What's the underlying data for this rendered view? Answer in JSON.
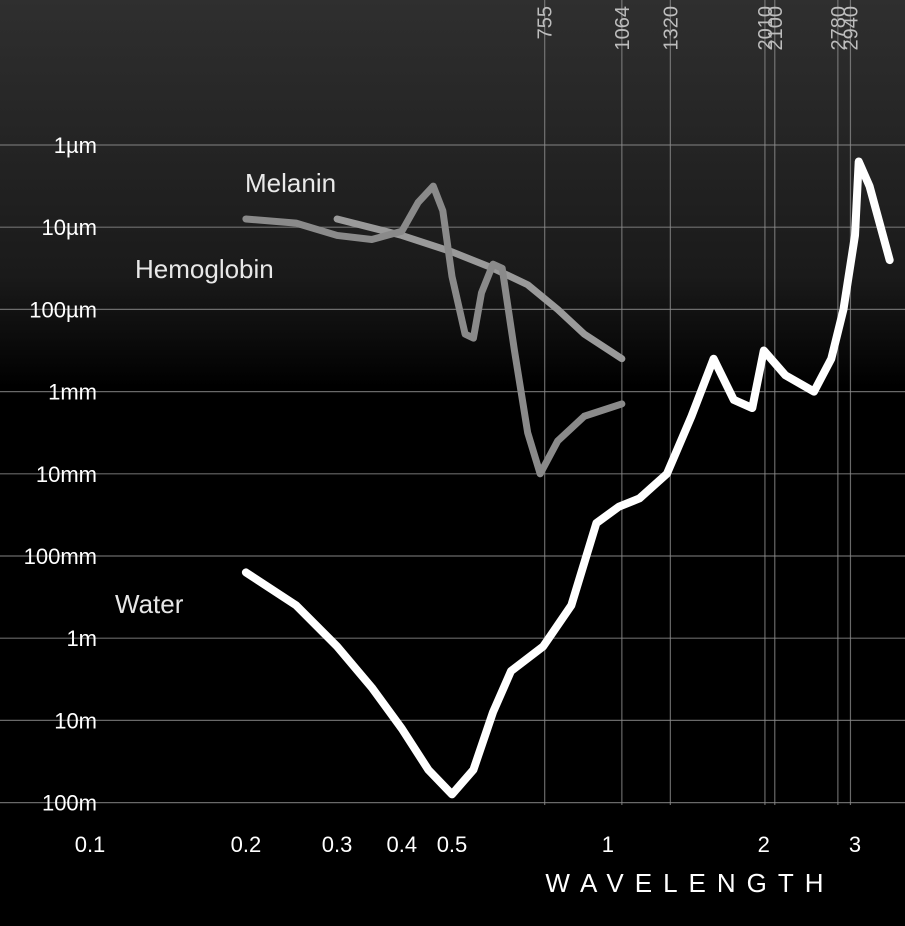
{
  "chart_data": {
    "type": "line",
    "title": "",
    "xlabel": "WAVELENGTH",
    "ylabel": "",
    "x_scale": "log",
    "y_scale": "log",
    "xlim": [
      0.1,
      3.5
    ],
    "x_ticks": [
      {
        "value": 0.1,
        "label": "0.1"
      },
      {
        "value": 0.2,
        "label": "0.2"
      },
      {
        "value": 0.3,
        "label": "0.3"
      },
      {
        "value": 0.4,
        "label": "0.4"
      },
      {
        "value": 0.5,
        "label": "0.5"
      },
      {
        "value": 1,
        "label": "1"
      },
      {
        "value": 2,
        "label": "2"
      },
      {
        "value": 3,
        "label": "3"
      }
    ],
    "y_ticks": [
      {
        "label": "1µm",
        "level": 0
      },
      {
        "label": "10µm",
        "level": 1
      },
      {
        "label": "100µm",
        "level": 2
      },
      {
        "label": "1mm",
        "level": 3
      },
      {
        "label": "10mm",
        "level": 4
      },
      {
        "label": "100mm",
        "level": 5
      },
      {
        "label": "1m",
        "level": 6
      },
      {
        "label": "10m",
        "level": 7
      },
      {
        "label": "100m",
        "level": 8
      }
    ],
    "wavelength_markers": [
      {
        "value": 0.755,
        "label": "755"
      },
      {
        "value": 1.064,
        "label": "1064"
      },
      {
        "value": 1.32,
        "label": "1320"
      },
      {
        "value": 2.01,
        "label": "2010"
      },
      {
        "value": 2.1,
        "label": "2100"
      },
      {
        "value": 2.78,
        "label": "2780"
      },
      {
        "value": 2.94,
        "label": "2940"
      }
    ],
    "grid": true,
    "series": [
      {
        "name": "Melanin",
        "color": "#9a9a9a",
        "points": [
          [
            0.3,
            0.9
          ],
          [
            0.4,
            1.1
          ],
          [
            0.5,
            1.3
          ],
          [
            0.6,
            1.5
          ],
          [
            0.7,
            1.7
          ],
          [
            0.8,
            2.0
          ],
          [
            0.9,
            2.3
          ],
          [
            1.064,
            2.6
          ]
        ]
      },
      {
        "name": "Hemoglobin",
        "color": "#8a8a8a",
        "points": [
          [
            0.2,
            0.9
          ],
          [
            0.25,
            0.95
          ],
          [
            0.3,
            1.1
          ],
          [
            0.35,
            1.15
          ],
          [
            0.4,
            1.05
          ],
          [
            0.43,
            0.7
          ],
          [
            0.46,
            0.5
          ],
          [
            0.48,
            0.8
          ],
          [
            0.5,
            1.6
          ],
          [
            0.53,
            2.3
          ],
          [
            0.55,
            2.35
          ],
          [
            0.57,
            1.8
          ],
          [
            0.6,
            1.45
          ],
          [
            0.625,
            1.5
          ],
          [
            0.66,
            2.5
          ],
          [
            0.7,
            3.5
          ],
          [
            0.74,
            4.0
          ],
          [
            0.8,
            3.6
          ],
          [
            0.9,
            3.3
          ],
          [
            1.064,
            3.15
          ]
        ]
      },
      {
        "name": "Water",
        "color": "#ffffff",
        "points": [
          [
            0.2,
            5.2
          ],
          [
            0.25,
            5.6
          ],
          [
            0.3,
            6.1
          ],
          [
            0.35,
            6.6
          ],
          [
            0.4,
            7.1
          ],
          [
            0.45,
            7.6
          ],
          [
            0.5,
            7.9
          ],
          [
            0.55,
            7.6
          ],
          [
            0.6,
            6.9
          ],
          [
            0.65,
            6.4
          ],
          [
            0.75,
            6.1
          ],
          [
            0.85,
            5.6
          ],
          [
            0.95,
            4.6
          ],
          [
            1.05,
            4.4
          ],
          [
            1.15,
            4.3
          ],
          [
            1.3,
            4.0
          ],
          [
            1.45,
            3.3
          ],
          [
            1.6,
            2.6
          ],
          [
            1.75,
            3.1
          ],
          [
            1.9,
            3.2
          ],
          [
            2.0,
            2.5
          ],
          [
            2.2,
            2.8
          ],
          [
            2.5,
            3.0
          ],
          [
            2.7,
            2.6
          ],
          [
            2.85,
            2.0
          ],
          [
            3.0,
            1.1
          ],
          [
            3.05,
            0.2
          ],
          [
            3.2,
            0.5
          ],
          [
            3.5,
            1.4
          ]
        ]
      }
    ]
  }
}
